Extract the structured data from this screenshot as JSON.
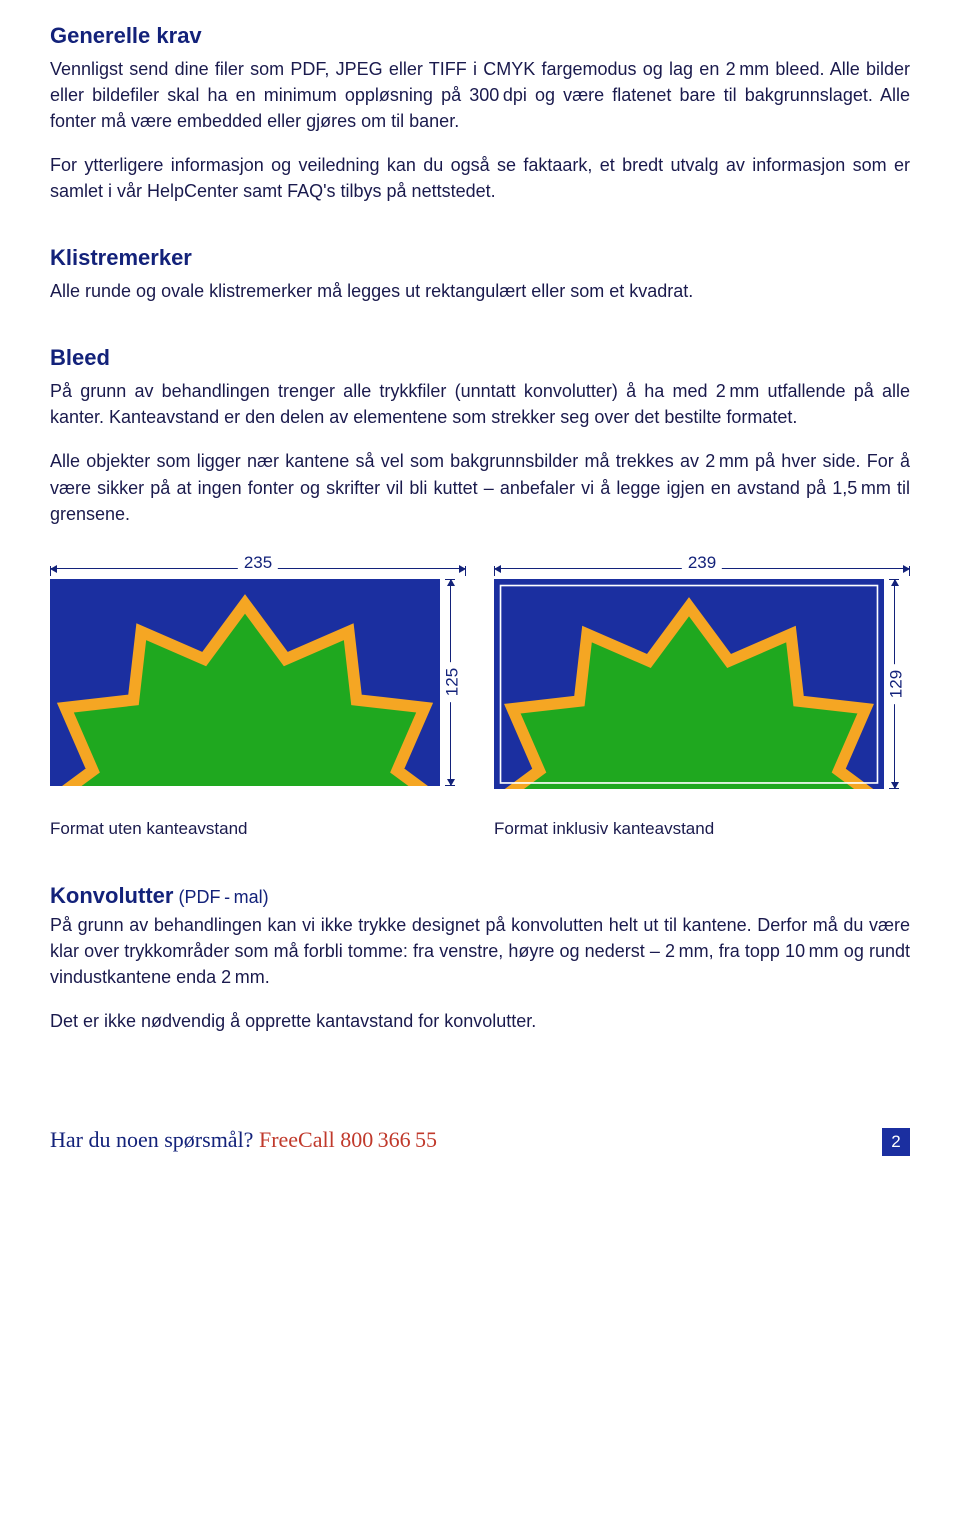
{
  "sections": {
    "generelle": {
      "title": "Generelle krav",
      "p1": "Vennligst send dine filer som PDF, JPEG eller TIFF i CMYK fargemodus og lag en 2 mm bleed. Alle bilder eller bildefiler skal ha en minimum oppløsning på 300 dpi og være flatenet bare til bakgrunnslaget. Alle fonter må være embedded eller gjøres om til baner.",
      "p2": "For ytterligere informasjon og veiledning kan du også se faktaark, et bredt utvalg av informasjon som er samlet i vår HelpCenter samt FAQ's tilbys på nettstedet."
    },
    "klistremerker": {
      "title": "Klistremerker",
      "p1": "Alle runde og ovale klistremerker må legges ut rektangulært eller som et kvadrat."
    },
    "bleed": {
      "title": "Bleed",
      "p1": "På grunn av behandlingen trenger alle trykkfiler (unntatt konvolutter) å ha med 2 mm utfallende på alle kanter. Kanteavstand er den delen av elementene som strekker seg over det bestilte formatet.",
      "p2": "Alle objekter som ligger nær kantene så vel som bakgrunnsbilder må trekkes av 2 mm på hver side. For å være sikker på at ingen fonter og skrifter vil bli kuttet – anbefaler vi å legge igjen en avstand på 1,5 mm til grensene."
    },
    "konvolutter": {
      "title": "Konvolutter",
      "subtitle": "(PDF - mal)",
      "p1": "På grunn av behandlingen kan vi ikke trykke designet på konvolutten helt ut til kantene. Derfor må du være klar over trykkområder som må forbli tomme: fra venstre, høyre og nederst – 2 mm, fra topp 10 mm og rundt vindustkantene enda 2 mm.",
      "p2": "Det er ikke nødvendig å opprette kantavstand for konvolutter."
    }
  },
  "diagrams": {
    "left": {
      "width_label": "235",
      "height_label": "125",
      "caption": "Format uten kanteavstand"
    },
    "right": {
      "width_label": "239",
      "height_label": "129",
      "caption": "Format inklusiv kanteavstand"
    },
    "colors": {
      "bg": "#1b2fa0",
      "burst_fill": "#1fa81f",
      "burst_stroke": "#f5a623",
      "trim_line": "#ffffff"
    }
  },
  "footer": {
    "question": "Har du noen spørsmål? ",
    "freecall": "FreeCall 800 366 55",
    "page": "2"
  }
}
